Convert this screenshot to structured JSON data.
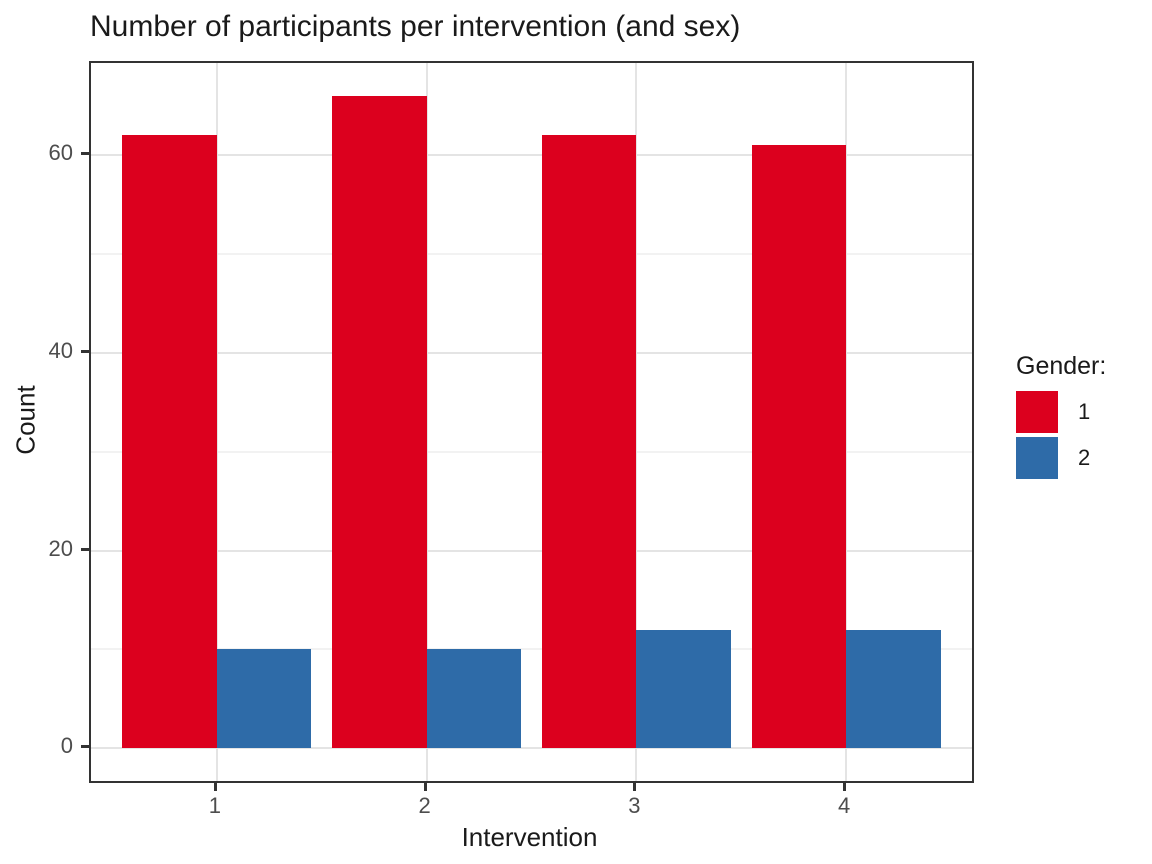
{
  "chart_data": {
    "type": "bar",
    "bar_layout": "dodged",
    "title": "Number of participants per intervention (and sex)",
    "xlabel": "Intervention",
    "ylabel": "Count",
    "categories": [
      "1",
      "2",
      "3",
      "4"
    ],
    "series": [
      {
        "name": "1",
        "color": "#DC001E",
        "values": [
          62,
          66,
          62,
          61
        ]
      },
      {
        "name": "2",
        "color": "#2E6BA8",
        "values": [
          10,
          10,
          12,
          12
        ]
      }
    ],
    "x_axis": {
      "tick_labels": [
        "1",
        "2",
        "3",
        "4"
      ]
    },
    "y_axis": {
      "major_ticks": [
        0,
        20,
        40,
        60
      ],
      "minor_ticks": [
        10,
        30,
        50
      ],
      "range": [
        -3.3,
        69.3
      ]
    },
    "legend": {
      "title": "Gender:",
      "position": "right",
      "entries": [
        "1",
        "2"
      ]
    },
    "grid": {
      "horizontal": "major+minor",
      "vertical": "major-at-categories"
    }
  },
  "style": {
    "bar_color_1": "#DC001E",
    "bar_color_2": "#2E6BA8",
    "grid_major_color": "#e4e4e4",
    "grid_minor_color": "#f2f2f2",
    "panel_border_color": "#333333",
    "tick_label_color": "#4d4d4d",
    "text_color": "#1a1a1a",
    "background": "#ffffff"
  }
}
